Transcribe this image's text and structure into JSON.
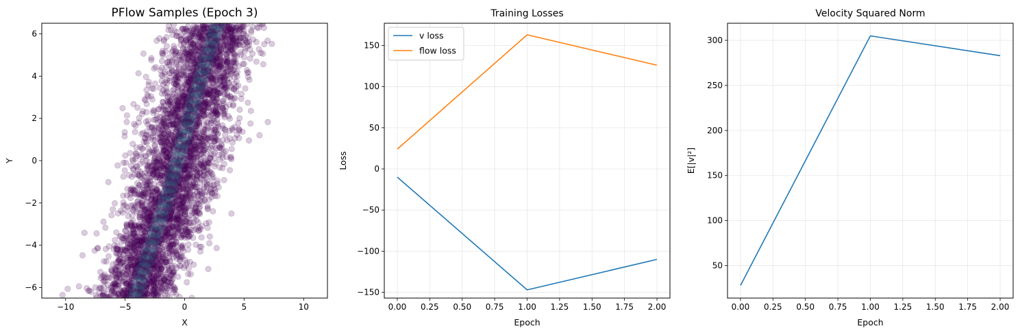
{
  "chart_data": [
    {
      "type": "scatter",
      "title": "PFlow Samples (Epoch 3)",
      "xlabel": "X",
      "ylabel": "Y",
      "xlim": [
        -12,
        12
      ],
      "ylim": [
        -6.5,
        6.5
      ],
      "xticks": [
        -10,
        -5,
        0,
        5,
        10
      ],
      "yticks": [
        -6,
        -4,
        -2,
        0,
        2,
        4,
        6
      ],
      "xtick_labels": [
        "−10",
        "−5",
        "0",
        "5",
        "10"
      ],
      "ytick_labels": [
        "−6",
        "−4",
        "−2",
        "0",
        "2",
        "4",
        "6"
      ],
      "point_color": "#440154",
      "density_color": "#21918c",
      "distribution": {
        "description_free": true,
        "band_center_at_y": [
          [
            -6.5,
            -4.2
          ],
          [
            -4,
            -2.8
          ],
          [
            -2,
            -1.6
          ],
          [
            0,
            -0.6
          ],
          [
            2,
            0.4
          ],
          [
            4,
            1.4
          ],
          [
            6.5,
            2.8
          ]
        ],
        "band_halfwidth": 4.2,
        "n_points": 4200
      },
      "grid": false
    },
    {
      "type": "line",
      "title": "Training Losses",
      "xlabel": "Epoch",
      "ylabel": "Loss",
      "xlim": [
        -0.1,
        2.1
      ],
      "ylim": [
        -157,
        177
      ],
      "xticks": [
        0.0,
        0.25,
        0.5,
        0.75,
        1.0,
        1.25,
        1.5,
        1.75,
        2.0
      ],
      "xtick_labels": [
        "0.00",
        "0.25",
        "0.50",
        "0.75",
        "1.00",
        "1.25",
        "1.50",
        "1.75",
        "2.00"
      ],
      "yticks": [
        -150,
        -100,
        -50,
        0,
        50,
        100,
        150
      ],
      "ytick_labels": [
        "−150",
        "−100",
        "−50",
        "0",
        "50",
        "100",
        "150"
      ],
      "x": [
        0,
        1,
        2
      ],
      "series": [
        {
          "name": "v loss",
          "values": [
            -10,
            -147,
            -110
          ],
          "color": "#1f77b4"
        },
        {
          "name": "flow loss",
          "values": [
            24,
            163,
            126
          ],
          "color": "#ff7f0e"
        }
      ],
      "legend": "top-left",
      "grid": true
    },
    {
      "type": "line",
      "title": "Velocity Squared Norm",
      "xlabel": "Epoch",
      "ylabel": "E[|v|²]",
      "xlim": [
        -0.1,
        2.1
      ],
      "ylim": [
        14,
        319
      ],
      "xticks": [
        0.0,
        0.25,
        0.5,
        0.75,
        1.0,
        1.25,
        1.5,
        1.75,
        2.0
      ],
      "xtick_labels": [
        "0.00",
        "0.25",
        "0.50",
        "0.75",
        "1.00",
        "1.25",
        "1.50",
        "1.75",
        "2.00"
      ],
      "yticks": [
        50,
        100,
        150,
        200,
        250,
        300
      ],
      "ytick_labels": [
        "50",
        "100",
        "150",
        "200",
        "250",
        "300"
      ],
      "x": [
        0,
        1,
        2
      ],
      "series": [
        {
          "values": [
            28,
            305,
            283
          ],
          "color": "#1f77b4"
        }
      ],
      "grid": true
    }
  ]
}
